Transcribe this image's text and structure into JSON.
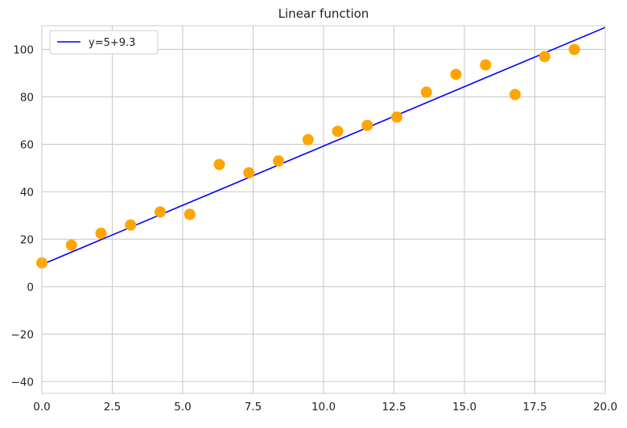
{
  "chart_data": {
    "type": "scatter",
    "title": "Linear function",
    "xlabel": "",
    "ylabel": "",
    "xlim": [
      0,
      20
    ],
    "ylim": [
      -45,
      110
    ],
    "x_ticks": [
      0.0,
      2.5,
      5.0,
      7.5,
      10.0,
      12.5,
      15.0,
      17.5,
      20.0
    ],
    "x_tick_labels": [
      "0.0",
      "2.5",
      "5.0",
      "7.5",
      "10.0",
      "12.5",
      "15.0",
      "17.5",
      "20.0"
    ],
    "y_ticks": [
      -40,
      -20,
      0,
      20,
      40,
      60,
      80,
      100
    ],
    "y_tick_labels": [
      "−40",
      "−20",
      "0",
      "20",
      "40",
      "60",
      "80",
      "100"
    ],
    "grid": true,
    "legend_position": "top-left",
    "points": {
      "color": "#ffa500",
      "x": [
        0.0,
        1.05,
        2.1,
        3.15,
        4.2,
        5.25,
        6.3,
        7.35,
        8.4,
        9.45,
        10.5,
        11.55,
        12.6,
        13.65,
        14.7,
        15.75,
        16.8,
        17.85,
        18.9
      ],
      "y": [
        10,
        17.5,
        22.5,
        26,
        31.5,
        30.5,
        51.5,
        48,
        53,
        62,
        65.5,
        68,
        71.5,
        82,
        89.5,
        93.5,
        81,
        97,
        100
      ]
    },
    "series": [
      {
        "name": "y=5+9.3",
        "type": "line",
        "color": "#0000ff",
        "x": [
          0,
          20
        ],
        "y": [
          9.3,
          109.3
        ]
      }
    ]
  }
}
